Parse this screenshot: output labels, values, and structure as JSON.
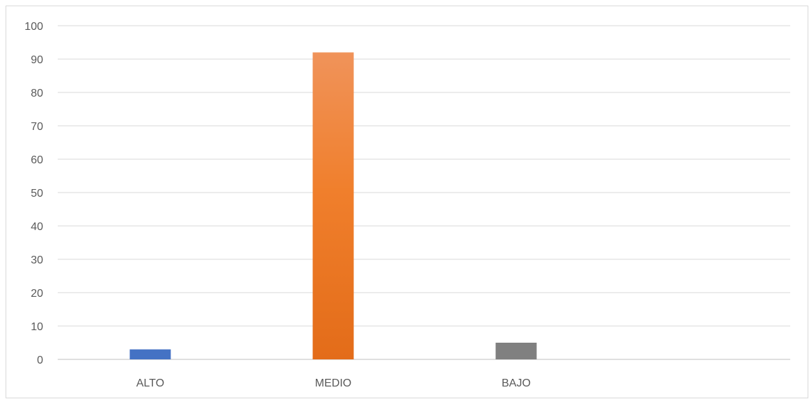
{
  "chart_data": {
    "type": "bar",
    "title": "",
    "xlabel": "",
    "ylabel": "",
    "categories": [
      "ALTO",
      "MEDIO",
      "BAJO"
    ],
    "values": [
      3,
      92,
      5
    ],
    "colors": [
      "#4472C4",
      "#ED7D31",
      "#808080"
    ],
    "ylim": [
      0,
      100
    ],
    "yticks": [
      "0",
      "10",
      "20",
      "30",
      "40",
      "50",
      "60",
      "70",
      "80",
      "90",
      "100"
    ],
    "grid": true,
    "legend": "none"
  }
}
